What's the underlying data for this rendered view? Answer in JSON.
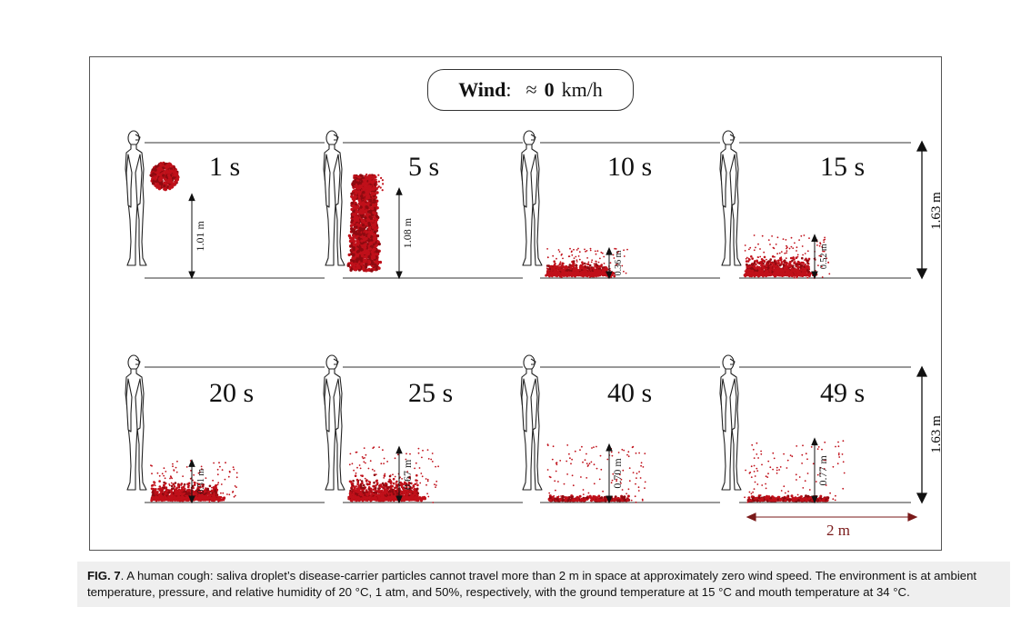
{
  "wind": {
    "label": "Wind",
    "colon": ":",
    "approx": "≈",
    "value": "0",
    "unit": "km/h"
  },
  "panels": [
    {
      "time": "1 s",
      "height_label": "1.01 m",
      "height_m": 1.01,
      "cloud": "puff"
    },
    {
      "time": "5 s",
      "height_label": "1.08 m",
      "height_m": 1.08,
      "cloud": "column"
    },
    {
      "time": "10 s",
      "height_label": "0.36 m",
      "height_m": 0.36,
      "cloud": "spread"
    },
    {
      "time": "15 s",
      "height_label": "0.52 m",
      "height_m": 0.52,
      "cloud": "spread"
    },
    {
      "time": "20 s",
      "height_label": "0.51 m",
      "height_m": 0.51,
      "cloud": "spread"
    },
    {
      "time": "25 s",
      "height_label": "0.67 m",
      "height_m": 0.67,
      "cloud": "spread"
    },
    {
      "time": "40 s",
      "height_label": "0.70 m",
      "height_m": 0.7,
      "cloud": "ground"
    },
    {
      "time": "49 s",
      "height_label": "0.77 m",
      "height_m": 0.77,
      "cloud": "ground"
    }
  ],
  "person_height_label": "1.63 m",
  "distance_label": "2 m",
  "colors": {
    "particle": "#c0101a",
    "particle_dark": "#8e0a10",
    "distance": "#7a1a1a"
  },
  "caption": {
    "fig": "FIG. 7",
    "text": ". A human cough: saliva droplet’s disease-carrier particles cannot travel more than 2 m in space at approximately zero wind speed. The environment is at ambient temperature, pressure, and relative humidity of 20 °C, 1 atm, and 50%, respectively, with the ground temperature at 15 °C and mouth temperature at 34 °C."
  }
}
